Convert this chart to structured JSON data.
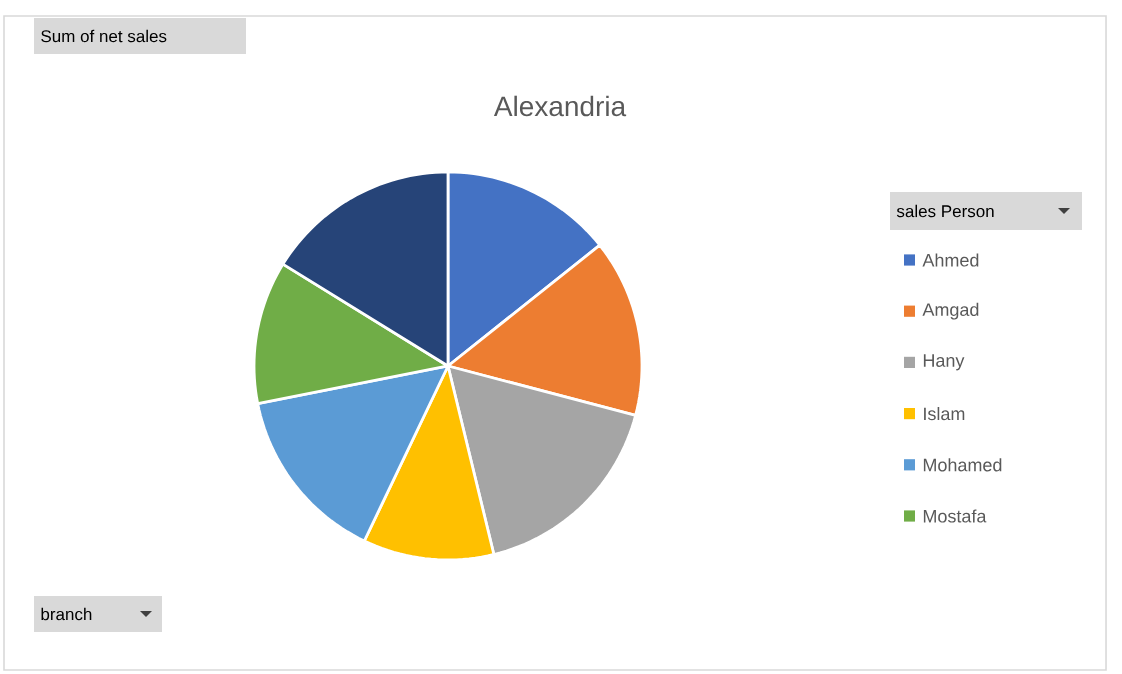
{
  "chart_data": {
    "type": "pie",
    "title": "Alexandria",
    "categories": [
      "Ahmed",
      "Amgad",
      "Hany",
      "Islam",
      "Mohamed",
      "Mostafa",
      null
    ],
    "values": [
      14.3,
      14.8,
      17.1,
      10.9,
      14.8,
      11.9,
      16.2
    ],
    "colors": [
      "#4472c4",
      "#ed7d31",
      "#a5a5a5",
      "#ffc000",
      "#5b9bd5",
      "#70ad47",
      "#264478"
    ],
    "legend": "right",
    "legend_title": "sales Person",
    "annotations": [
      "Sum of net sales",
      "branch"
    ]
  }
}
